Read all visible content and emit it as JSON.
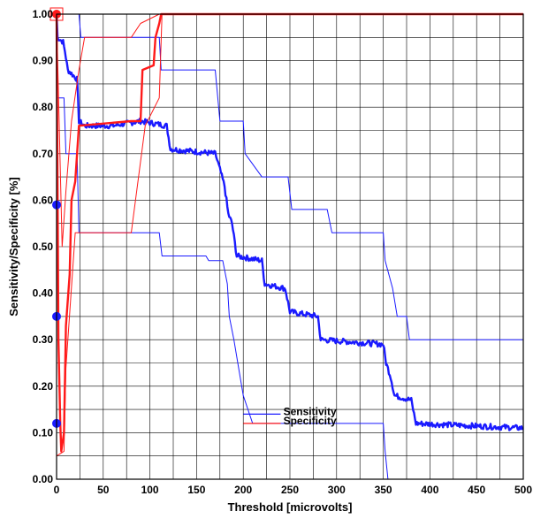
{
  "chart_data": {
    "type": "line",
    "title": "",
    "xlabel": "Threshold [microvolts]",
    "ylabel": "Sensitivity/Specificity [%]",
    "xlim": [
      0,
      500
    ],
    "ylim": [
      0,
      1
    ],
    "x_ticks": [
      0,
      50,
      100,
      150,
      200,
      250,
      300,
      350,
      400,
      450,
      500
    ],
    "x_tick_labels": [
      "0",
      "50",
      "100",
      "150",
      "200",
      "250",
      "300",
      "350",
      "400",
      "450",
      "500"
    ],
    "y_ticks": [
      0,
      0.1,
      0.2,
      0.3,
      0.4,
      0.5,
      0.6,
      0.7,
      0.8,
      0.9,
      1.0
    ],
    "y_tick_labels": [
      "0.00",
      "0.10",
      "0.20",
      "0.30",
      "0.40",
      "0.50",
      "0.60",
      "0.70",
      "0.80",
      "0.90",
      "1.00"
    ],
    "grid": true,
    "legend_position": "center-right",
    "legend": [
      "Sensitivity",
      "Specificity"
    ],
    "colors": {
      "sensitivity": "#1a1aff",
      "specificity": "#ff1a1a",
      "grid": "#000000"
    },
    "series": [
      {
        "name": "Sensitivity",
        "role": "mean",
        "points": [
          [
            0,
            1.0
          ],
          [
            1,
            0.95
          ],
          [
            7,
            0.94
          ],
          [
            9,
            0.92
          ],
          [
            12,
            0.88
          ],
          [
            22,
            0.86
          ],
          [
            24,
            0.77
          ],
          [
            30,
            0.76
          ],
          [
            60,
            0.76
          ],
          [
            90,
            0.77
          ],
          [
            118,
            0.76
          ],
          [
            122,
            0.71
          ],
          [
            170,
            0.7
          ],
          [
            173,
            0.68
          ],
          [
            180,
            0.63
          ],
          [
            184,
            0.57
          ],
          [
            188,
            0.55
          ],
          [
            193,
            0.48
          ],
          [
            220,
            0.47
          ],
          [
            223,
            0.42
          ],
          [
            245,
            0.41
          ],
          [
            250,
            0.36
          ],
          [
            280,
            0.35
          ],
          [
            283,
            0.3
          ],
          [
            350,
            0.29
          ],
          [
            353,
            0.25
          ],
          [
            358,
            0.22
          ],
          [
            362,
            0.18
          ],
          [
            380,
            0.17
          ],
          [
            385,
            0.12
          ],
          [
            500,
            0.11
          ]
        ]
      },
      {
        "name": "Sensitivity",
        "role": "upper",
        "points": [
          [
            0,
            1.0
          ],
          [
            24,
            1.0
          ],
          [
            26,
            0.95
          ],
          [
            110,
            0.95
          ],
          [
            112,
            0.88
          ],
          [
            140,
            0.88
          ],
          [
            170,
            0.88
          ],
          [
            175,
            0.77
          ],
          [
            200,
            0.77
          ],
          [
            202,
            0.7
          ],
          [
            220,
            0.65
          ],
          [
            248,
            0.65
          ],
          [
            252,
            0.58
          ],
          [
            290,
            0.58
          ],
          [
            295,
            0.53
          ],
          [
            350,
            0.53
          ],
          [
            352,
            0.47
          ],
          [
            360,
            0.41
          ],
          [
            365,
            0.35
          ],
          [
            375,
            0.35
          ],
          [
            378,
            0.3
          ],
          [
            500,
            0.3
          ]
        ]
      },
      {
        "name": "Sensitivity",
        "role": "lower",
        "points": [
          [
            0,
            0.82
          ],
          [
            8,
            0.82
          ],
          [
            10,
            0.7
          ],
          [
            22,
            0.7
          ],
          [
            24,
            0.53
          ],
          [
            110,
            0.53
          ],
          [
            113,
            0.48
          ],
          [
            135,
            0.48
          ],
          [
            160,
            0.48
          ],
          [
            163,
            0.47
          ],
          [
            178,
            0.47
          ],
          [
            183,
            0.42
          ],
          [
            185,
            0.35
          ],
          [
            190,
            0.3
          ],
          [
            195,
            0.24
          ],
          [
            200,
            0.18
          ],
          [
            210,
            0.12
          ],
          [
            230,
            0.12
          ],
          [
            240,
            0.12
          ],
          [
            350,
            0.12
          ],
          [
            352,
            0.06
          ],
          [
            355,
            0.0
          ],
          [
            500,
            0.0
          ]
        ]
      },
      {
        "name": "Specificity",
        "role": "mean",
        "points": [
          [
            0,
            1.0
          ],
          [
            2,
            0.3
          ],
          [
            4,
            0.12
          ],
          [
            5,
            0.06
          ],
          [
            8,
            0.1
          ],
          [
            10,
            0.33
          ],
          [
            14,
            0.44
          ],
          [
            16,
            0.6
          ],
          [
            20,
            0.64
          ],
          [
            24,
            0.76
          ],
          [
            80,
            0.77
          ],
          [
            90,
            0.77
          ],
          [
            92,
            0.88
          ],
          [
            104,
            0.89
          ],
          [
            106,
            0.95
          ],
          [
            110,
            0.98
          ],
          [
            112,
            1.0
          ],
          [
            500,
            1.0
          ]
        ]
      },
      {
        "name": "Specificity",
        "role": "upper",
        "points": [
          [
            0,
            1.0
          ],
          [
            6,
            0.5
          ],
          [
            10,
            0.62
          ],
          [
            16,
            0.77
          ],
          [
            24,
            0.88
          ],
          [
            30,
            0.95
          ],
          [
            80,
            0.95
          ],
          [
            90,
            0.98
          ],
          [
            110,
            1.0
          ],
          [
            500,
            1.0
          ]
        ]
      },
      {
        "name": "Specificity",
        "role": "lower",
        "points": [
          [
            0,
            0.05
          ],
          [
            8,
            0.06
          ],
          [
            10,
            0.24
          ],
          [
            20,
            0.53
          ],
          [
            80,
            0.53
          ],
          [
            95,
            0.76
          ],
          [
            110,
            0.82
          ],
          [
            113,
            1.0
          ],
          [
            500,
            1.0
          ]
        ]
      }
    ],
    "markers": [
      {
        "series": "Specificity",
        "x": 0,
        "y": 1.0,
        "boxed": true
      },
      {
        "series": "Sensitivity",
        "x": 0,
        "y": 0.59,
        "boxed": false
      },
      {
        "series": "Sensitivity",
        "x": 0,
        "y": 0.35,
        "boxed": false
      },
      {
        "series": "Sensitivity",
        "x": 0,
        "y": 0.12,
        "boxed": false
      }
    ]
  }
}
